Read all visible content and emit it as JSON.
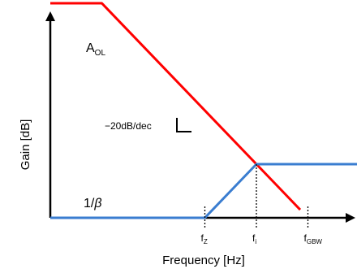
{
  "chart_data": {
    "type": "line",
    "x_scale": "log",
    "xlabel": "Frequency [Hz]",
    "ylabel": "Gain [dB]",
    "grid": false,
    "series": [
      {
        "name": "A_OL",
        "label_main": "A",
        "label_sub": "OL",
        "color": "#ff0000",
        "points": [
          {
            "x": 0.1,
            "y": 80
          },
          {
            "x": 1,
            "y": 80
          },
          {
            "x": 3162.3,
            "y": 10
          },
          {
            "x": 7079.5,
            "y": 3
          }
        ]
      },
      {
        "name": "1/β",
        "label_main": "1/",
        "label_greek": "β",
        "color": "#3a7dd0",
        "points": [
          {
            "x": 0.1,
            "y": 0
          },
          {
            "x": 100,
            "y": 0
          },
          {
            "x": 1000,
            "y": 20
          },
          {
            "x": 100000,
            "y": 20
          }
        ]
      }
    ],
    "annotations": {
      "slope": "−20dB/dec",
      "ticks": [
        {
          "main": "f",
          "sub": "Z",
          "x": 100
        },
        {
          "main": "f",
          "sub": "i",
          "x": 1000
        },
        {
          "main": "f",
          "sub": "GBW",
          "x": 10000
        }
      ]
    }
  }
}
